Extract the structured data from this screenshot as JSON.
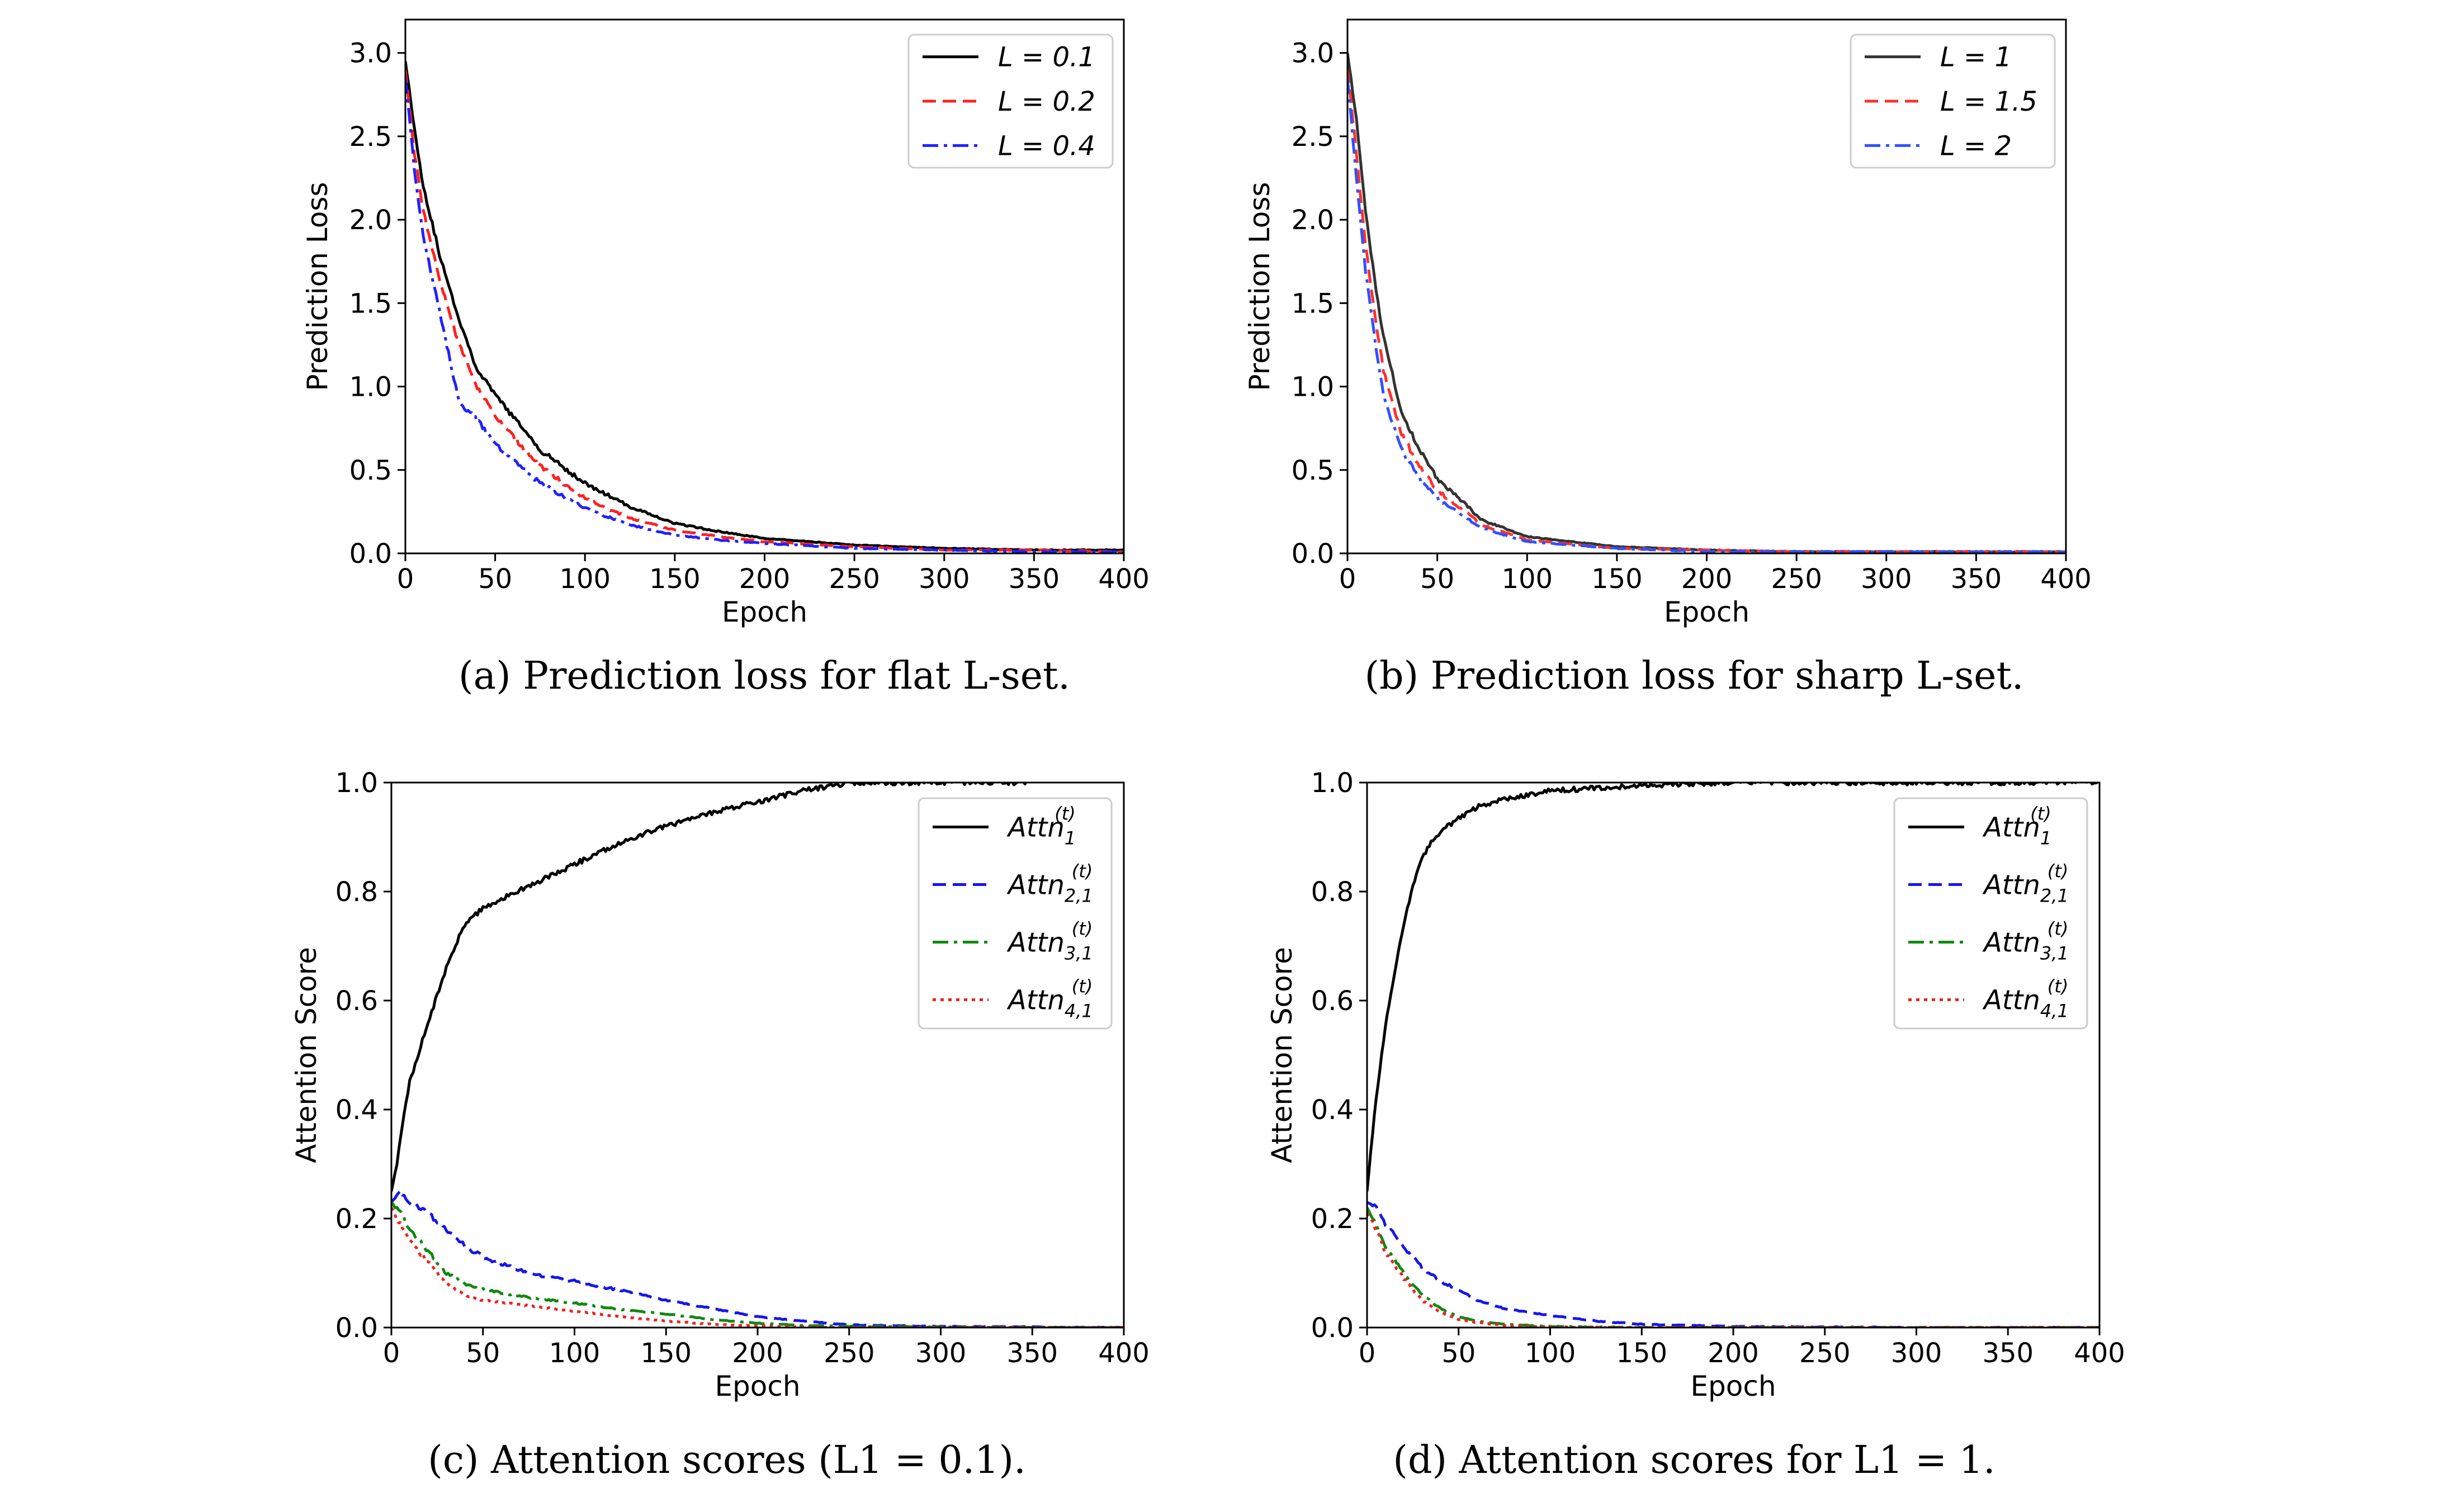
{
  "chart_data": [
    {
      "id": "a",
      "type": "line",
      "xlabel": "Epoch",
      "ylabel": "Prediction Loss",
      "xlim": [
        0,
        400
      ],
      "ylim": [
        0,
        3.2
      ],
      "xticks": [
        "0",
        "50",
        "100",
        "150",
        "200",
        "250",
        "300",
        "350",
        "400"
      ],
      "yticks": [
        "0.0",
        "0.5",
        "1.0",
        "1.5",
        "2.0",
        "2.5",
        "3.0"
      ],
      "legend_position": "top-right",
      "caption": "(a) Prediction loss for flat L-set.",
      "series": [
        {
          "name": "L = 0.1",
          "legend_main": "L = 0.1",
          "legend_sub": "",
          "color": "#000000",
          "dash": "solid",
          "x": [
            0,
            5,
            10,
            20,
            30,
            40,
            50,
            75,
            100,
            125,
            150,
            175,
            200,
            250,
            300,
            350,
            400
          ],
          "y": [
            2.95,
            2.55,
            2.2,
            1.75,
            1.4,
            1.1,
            0.95,
            0.62,
            0.42,
            0.28,
            0.18,
            0.13,
            0.09,
            0.05,
            0.03,
            0.02,
            0.02
          ]
        },
        {
          "name": "L = 0.2",
          "legend_main": "L = 0.2",
          "legend_sub": "",
          "color": "#ff2020",
          "dash": "dash",
          "x": [
            0,
            5,
            10,
            20,
            30,
            40,
            50,
            75,
            100,
            125,
            150,
            175,
            200,
            250,
            300,
            350,
            400
          ],
          "y": [
            2.9,
            2.4,
            2.05,
            1.6,
            1.25,
            1.0,
            0.82,
            0.52,
            0.33,
            0.21,
            0.14,
            0.1,
            0.07,
            0.04,
            0.02,
            0.02,
            0.01
          ]
        },
        {
          "name": "L = 0.4",
          "legend_main": "L = 0.4",
          "legend_sub": "",
          "color": "#2020ff",
          "dash": "dashdot",
          "x": [
            0,
            5,
            10,
            20,
            30,
            40,
            50,
            75,
            100,
            125,
            150,
            175,
            200,
            250,
            300,
            350,
            400
          ],
          "y": [
            2.85,
            2.3,
            1.9,
            1.4,
            0.9,
            0.8,
            0.65,
            0.42,
            0.27,
            0.17,
            0.11,
            0.08,
            0.06,
            0.03,
            0.02,
            0.01,
            0.01
          ]
        }
      ]
    },
    {
      "id": "b",
      "type": "line",
      "xlabel": "Epoch",
      "ylabel": "Prediction Loss",
      "xlim": [
        0,
        400
      ],
      "ylim": [
        0,
        3.2
      ],
      "xticks": [
        "0",
        "50",
        "100",
        "150",
        "200",
        "250",
        "300",
        "350",
        "400"
      ],
      "yticks": [
        "0.0",
        "0.5",
        "1.0",
        "1.5",
        "2.0",
        "2.5",
        "3.0"
      ],
      "legend_position": "top-right",
      "caption": "(b) Prediction loss for sharp L-set.",
      "series": [
        {
          "name": "L = 1",
          "legend_main": "L = 1",
          "legend_sub": "",
          "color": "#333333",
          "dash": "solid",
          "x": [
            0,
            5,
            10,
            15,
            20,
            30,
            40,
            50,
            75,
            100,
            150,
            200,
            250,
            300,
            400
          ],
          "y": [
            3.0,
            2.6,
            2.05,
            1.65,
            1.3,
            0.85,
            0.62,
            0.45,
            0.2,
            0.1,
            0.04,
            0.02,
            0.01,
            0.01,
            0.01
          ]
        },
        {
          "name": "L = 1.5",
          "legend_main": "L = 1.5",
          "legend_sub": "",
          "color": "#ff3030",
          "dash": "dash",
          "x": [
            0,
            5,
            10,
            15,
            20,
            30,
            40,
            50,
            75,
            100,
            150,
            200,
            250,
            300,
            400
          ],
          "y": [
            2.9,
            2.4,
            1.85,
            1.45,
            1.1,
            0.72,
            0.52,
            0.38,
            0.17,
            0.08,
            0.03,
            0.02,
            0.01,
            0.01,
            0.01
          ]
        },
        {
          "name": "L = 2",
          "legend_main": "L = 2",
          "legend_sub": "",
          "color": "#3050ff",
          "dash": "dashdot",
          "x": [
            0,
            5,
            10,
            15,
            20,
            30,
            40,
            50,
            75,
            100,
            150,
            200,
            250,
            300,
            400
          ],
          "y": [
            2.85,
            2.25,
            1.7,
            1.3,
            0.95,
            0.62,
            0.45,
            0.33,
            0.15,
            0.07,
            0.03,
            0.01,
            0.01,
            0.01,
            0.01
          ]
        }
      ]
    },
    {
      "id": "c",
      "type": "line",
      "xlabel": "Epoch",
      "ylabel": "Attention Score",
      "xlim": [
        0,
        400
      ],
      "ylim": [
        0,
        1.0
      ],
      "xticks": [
        "0",
        "50",
        "100",
        "150",
        "200",
        "250",
        "300",
        "350",
        "400"
      ],
      "yticks": [
        "0.0",
        "0.2",
        "0.4",
        "0.6",
        "0.8",
        "1.0"
      ],
      "legend_position": "top-right",
      "caption": "(c) Attention scores (L1 = 0.1).",
      "series": [
        {
          "name": "Attn1(t)",
          "legend_main": "Attn",
          "legend_sub": "1",
          "color": "#000000",
          "dash": "solid",
          "x": [
            0,
            3,
            5,
            10,
            20,
            30,
            40,
            50,
            75,
            100,
            125,
            150,
            175,
            200,
            225,
            250,
            300,
            350
          ],
          "y": [
            0.25,
            0.3,
            0.35,
            0.45,
            0.56,
            0.66,
            0.74,
            0.77,
            0.81,
            0.85,
            0.89,
            0.92,
            0.945,
            0.965,
            0.985,
            1.0,
            1.0,
            1.0
          ]
        },
        {
          "name": "Attn2,1(t)",
          "legend_main": "Attn",
          "legend_sub": "2,1",
          "color": "#1515ee",
          "dash": "dash",
          "x": [
            0,
            5,
            10,
            20,
            30,
            40,
            50,
            75,
            100,
            125,
            150,
            175,
            200,
            225,
            250,
            300,
            350,
            400
          ],
          "y": [
            0.23,
            0.25,
            0.23,
            0.21,
            0.18,
            0.15,
            0.13,
            0.1,
            0.085,
            0.068,
            0.05,
            0.035,
            0.02,
            0.012,
            0.005,
            0.002,
            0.001,
            0.0
          ]
        },
        {
          "name": "Attn3,1(t)",
          "legend_main": "Attn",
          "legend_sub": "3,1",
          "color": "#118811",
          "dash": "dashdot",
          "x": [
            0,
            5,
            10,
            20,
            30,
            40,
            50,
            75,
            100,
            125,
            150,
            175,
            200,
            225,
            250,
            300,
            350,
            400
          ],
          "y": [
            0.23,
            0.21,
            0.18,
            0.14,
            0.1,
            0.08,
            0.07,
            0.055,
            0.045,
            0.033,
            0.025,
            0.015,
            0.008,
            0.004,
            0.002,
            0.001,
            0.0,
            0.0
          ]
        },
        {
          "name": "Attn4,1(t)",
          "legend_main": "Attn",
          "legend_sub": "4,1",
          "color": "#ee2222",
          "dash": "dot",
          "x": [
            0,
            5,
            10,
            20,
            30,
            40,
            50,
            75,
            100,
            125,
            150,
            175,
            200,
            225,
            250,
            300,
            350,
            400
          ],
          "y": [
            0.22,
            0.19,
            0.16,
            0.12,
            0.08,
            0.06,
            0.05,
            0.04,
            0.03,
            0.02,
            0.012,
            0.006,
            0.003,
            0.001,
            0.0,
            0.0,
            0.0,
            0.0
          ]
        }
      ]
    },
    {
      "id": "d",
      "type": "line",
      "xlabel": "Epoch",
      "ylabel": "Attention Score",
      "xlim": [
        0,
        400
      ],
      "ylim": [
        0,
        1.0
      ],
      "xticks": [
        "0",
        "50",
        "100",
        "150",
        "200",
        "250",
        "300",
        "350",
        "400"
      ],
      "yticks": [
        "0.0",
        "0.2",
        "0.4",
        "0.6",
        "0.8",
        "1.0"
      ],
      "legend_position": "top-right",
      "caption": "(d) Attention scores for L1 = 1.",
      "series": [
        {
          "name": "Attn1(t)",
          "legend_main": "Attn",
          "legend_sub": "1",
          "color": "#000000",
          "dash": "solid",
          "x": [
            0,
            2,
            5,
            10,
            15,
            20,
            25,
            30,
            35,
            40,
            50,
            60,
            75,
            100,
            150,
            200,
            250,
            300,
            400
          ],
          "y": [
            0.25,
            0.32,
            0.42,
            0.55,
            0.65,
            0.74,
            0.81,
            0.86,
            0.89,
            0.91,
            0.935,
            0.955,
            0.97,
            0.985,
            0.995,
            1.0,
            1.0,
            1.0,
            1.0
          ]
        },
        {
          "name": "Attn2,1(t)",
          "legend_main": "Attn",
          "legend_sub": "2,1",
          "color": "#1515ee",
          "dash": "dash",
          "x": [
            0,
            5,
            10,
            20,
            30,
            40,
            50,
            60,
            75,
            100,
            125,
            150,
            200,
            250,
            300,
            400
          ],
          "y": [
            0.23,
            0.22,
            0.19,
            0.15,
            0.11,
            0.085,
            0.07,
            0.05,
            0.035,
            0.022,
            0.012,
            0.006,
            0.002,
            0.001,
            0.0,
            0.0
          ]
        },
        {
          "name": "Attn3,1(t)",
          "legend_main": "Attn",
          "legend_sub": "3,1",
          "color": "#118811",
          "dash": "dashdot",
          "x": [
            0,
            5,
            10,
            20,
            30,
            40,
            50,
            60,
            75,
            100,
            150,
            200,
            400
          ],
          "y": [
            0.22,
            0.19,
            0.15,
            0.1,
            0.06,
            0.035,
            0.02,
            0.012,
            0.006,
            0.002,
            0.0,
            0.0,
            0.0
          ]
        },
        {
          "name": "Attn4,1(t)",
          "legend_main": "Attn",
          "legend_sub": "4,1",
          "color": "#ee2222",
          "dash": "dot",
          "x": [
            0,
            5,
            10,
            20,
            30,
            40,
            50,
            60,
            75,
            100,
            150,
            200,
            400
          ],
          "y": [
            0.21,
            0.18,
            0.14,
            0.09,
            0.05,
            0.028,
            0.015,
            0.009,
            0.004,
            0.001,
            0.0,
            0.0,
            0.0
          ]
        }
      ]
    }
  ]
}
